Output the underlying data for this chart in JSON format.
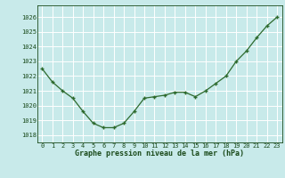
{
  "x": [
    0,
    1,
    2,
    3,
    4,
    5,
    6,
    7,
    8,
    9,
    10,
    11,
    12,
    13,
    14,
    15,
    16,
    17,
    18,
    19,
    20,
    21,
    22,
    23
  ],
  "y": [
    1022.5,
    1021.6,
    1021.0,
    1020.5,
    1019.6,
    1018.8,
    1018.5,
    1018.5,
    1018.8,
    1019.6,
    1020.5,
    1020.6,
    1020.7,
    1020.9,
    1020.9,
    1020.6,
    1021.0,
    1021.5,
    1022.0,
    1023.0,
    1023.7,
    1024.6,
    1025.4,
    1026.0
  ],
  "line_color": "#2d6a2d",
  "marker_color": "#2d6a2d",
  "bg_color": "#c8eaea",
  "grid_color": "#ffffff",
  "title": "Graphe pression niveau de la mer (hPa)",
  "title_color": "#1a4a1a",
  "tick_color": "#1a4a1a",
  "ylim_min": 1017.5,
  "ylim_max": 1026.8,
  "yticks": [
    1018,
    1019,
    1020,
    1021,
    1022,
    1023,
    1024,
    1025,
    1026
  ],
  "xtick_labels": [
    "0",
    "1",
    "2",
    "3",
    "4",
    "5",
    "6",
    "7",
    "8",
    "9",
    "10",
    "11",
    "12",
    "13",
    "14",
    "15",
    "16",
    "17",
    "18",
    "19",
    "20",
    "21",
    "22",
    "23"
  ]
}
